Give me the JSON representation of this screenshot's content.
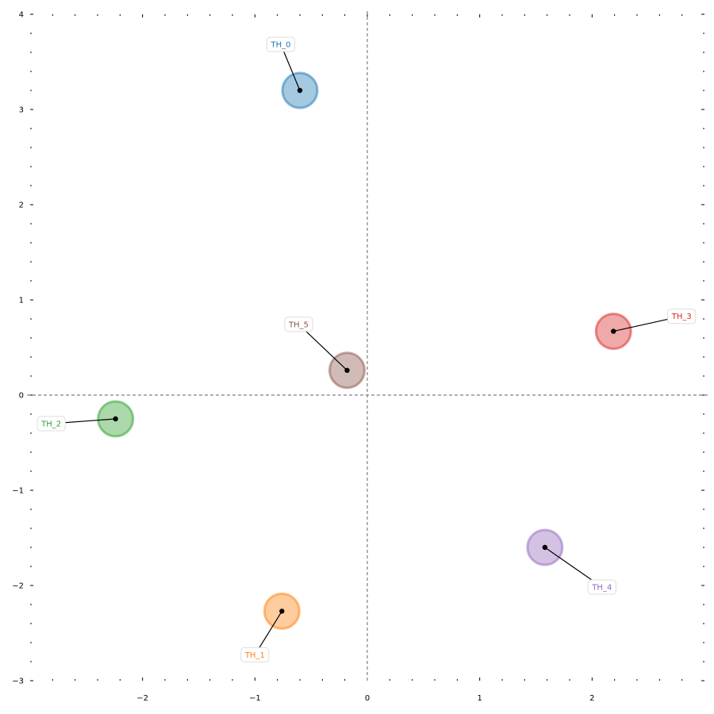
{
  "chart_data": {
    "type": "scatter",
    "title": "",
    "xlabel": "",
    "ylabel": "",
    "xlim": [
      -3.0,
      3.0
    ],
    "ylim": [
      -3.0,
      4.0
    ],
    "x_ticks": [
      -2,
      -1,
      0,
      1,
      2
    ],
    "y_ticks": [
      -3,
      -2,
      -1,
      0,
      1,
      2,
      3,
      4
    ],
    "x_tick_labels": [
      "−2",
      "−1",
      "0",
      "1",
      "2"
    ],
    "y_tick_labels": [
      "−3",
      "−2",
      "−1",
      "0",
      "1",
      "2",
      "3",
      "4"
    ],
    "grid": false,
    "reference_lines": {
      "x": 0,
      "y": 0,
      "style": "dashed",
      "color": "#808080"
    },
    "points": [
      {
        "label": "TH_0",
        "x": -0.6,
        "y": 3.2,
        "color": "#1f77b4"
      },
      {
        "label": "TH_1",
        "x": -0.76,
        "y": -2.27,
        "color": "#ff7f0e"
      },
      {
        "label": "TH_2",
        "x": -2.24,
        "y": -0.25,
        "color": "#2ca02c"
      },
      {
        "label": "TH_3",
        "x": 2.19,
        "y": 0.67,
        "color": "#d62728"
      },
      {
        "label": "TH_4",
        "x": 1.58,
        "y": -1.6,
        "color": "#9467bd"
      },
      {
        "label": "TH_5",
        "x": -0.18,
        "y": 0.26,
        "color": "#8c564b"
      }
    ]
  }
}
